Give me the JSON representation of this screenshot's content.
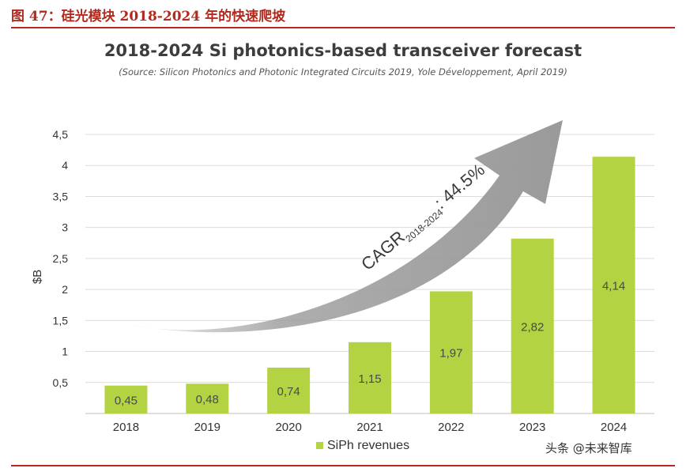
{
  "header": {
    "figure_label": "图 47：硅光模块 2018-2024 年的快速爬坡"
  },
  "watermark": "头条 @未来智库",
  "colors": {
    "bar": "#b4d343",
    "bar_label": "#4a4a4a",
    "arrow": "#9a9a9a",
    "grid": "#dcdcdc",
    "accent": "#b22a1d"
  },
  "chart_data": {
    "type": "bar",
    "title": "2018-2024 Si photonics-based transceiver forecast",
    "subtitle": "(Source: Silicon Photonics and Photonic Integrated Circuits 2019, Yole Développement, April 2019)",
    "categories": [
      "2018",
      "2019",
      "2020",
      "2021",
      "2022",
      "2023",
      "2024"
    ],
    "series": [
      {
        "name": "SiPh revenues",
        "values": [
          0.45,
          0.48,
          0.74,
          1.15,
          1.97,
          2.82,
          4.14
        ],
        "value_labels": [
          "0,45",
          "0,48",
          "0,74",
          "1,15",
          "1,97",
          "2,82",
          "4,14"
        ]
      }
    ],
    "ylabel": "$B",
    "xlabel": "",
    "ylim": [
      0,
      4.5
    ],
    "yticks": [
      0.5,
      1,
      1.5,
      2,
      2.5,
      3,
      3.5,
      4,
      4.5
    ],
    "ytick_labels": [
      "0,5",
      "1",
      "1,5",
      "2",
      "2,5",
      "3",
      "3,5",
      "4",
      "4,5"
    ],
    "grid": true,
    "legend": "bottom-center",
    "annotation": {
      "text": "CAGR",
      "subscript": "2018-2024",
      "suffix": ": 44.5%"
    }
  }
}
